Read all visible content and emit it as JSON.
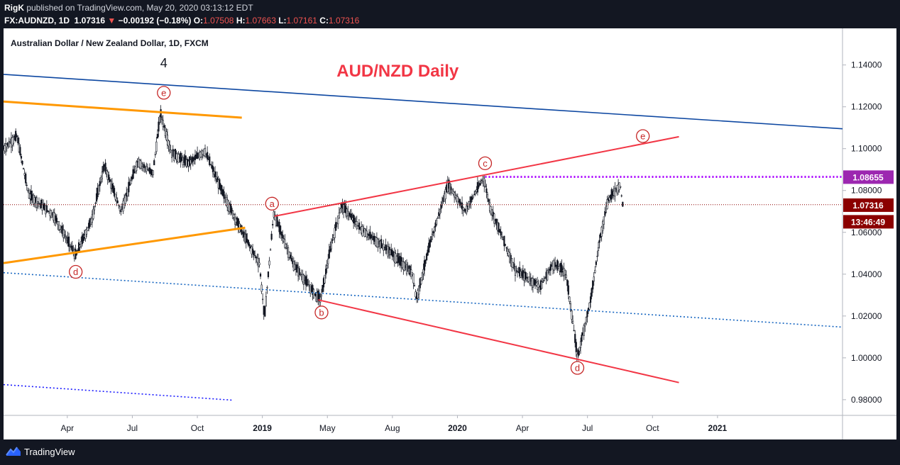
{
  "header": {
    "author": "RigK",
    "published": " published on TradingView.com, May 20, 2020 03:13:12 EDT",
    "symbol": "FX:AUDNZD, 1D",
    "last": "1.07316",
    "change_arrow": "▼",
    "change": "−0.00192 (−0.18%)",
    "o_label": "O:",
    "o": "1.07508",
    "h_label": "H:",
    "h": "1.07663",
    "l_label": "L:",
    "l": "1.07161",
    "c_label": "C:",
    "c": "1.07316"
  },
  "footer": {
    "brand": "TradingView",
    "logo_icon": "tradingview-logo-icon"
  },
  "chart_data": {
    "type": "candlestick",
    "title": "Australian Dollar / New Zealand Dollar, 1D, FXCM",
    "annotation_title": "AUD/NZD Daily",
    "x_ticks": [
      "Apr",
      "Jul",
      "Oct",
      "2019",
      "May",
      "Aug",
      "2020",
      "Apr",
      "Jul",
      "Oct",
      "2021"
    ],
    "y_ticks": [
      "1.14000",
      "1.12000",
      "1.10000",
      "1.08000",
      "1.06000",
      "1.04000",
      "1.02000",
      "1.00000",
      "0.98000"
    ],
    "ylim": [
      0.9725,
      1.1575
    ],
    "price_labels": [
      {
        "text": "1.08655",
        "value": 1.08655,
        "color": "#9c27b0"
      },
      {
        "text": "1.07316",
        "value": 1.07316,
        "color": "#8b0000"
      },
      {
        "text": "13:46:49",
        "value": 1.0652,
        "color": "#8b0000"
      }
    ],
    "wave_labels": [
      {
        "text": "4",
        "style": "plain",
        "t": 0.191,
        "v": 1.1388
      },
      {
        "text": "e",
        "style": "circle",
        "t": 0.191,
        "v": 1.1267
      },
      {
        "text": "d",
        "style": "circle",
        "t": 0.086,
        "v": 1.0411
      },
      {
        "text": "a",
        "style": "circle",
        "t": 0.32,
        "v": 1.0737
      },
      {
        "text": "b",
        "style": "circle",
        "t": 0.379,
        "v": 1.0217
      },
      {
        "text": "c",
        "style": "circle",
        "t": 0.574,
        "v": 1.093
      },
      {
        "text": "e",
        "style": "circle",
        "t": 0.762,
        "v": 1.106
      },
      {
        "text": "d",
        "style": "circle",
        "t": 0.684,
        "v": 0.9952
      }
    ],
    "trendlines": [
      {
        "name": "blue-resistance",
        "color": "#0d47a1",
        "dash": "",
        "width": 1.6,
        "p1": [
          0.0,
          1.1355
        ],
        "p2": [
          1.0,
          1.1095
        ]
      },
      {
        "name": "orange-top",
        "color": "#ff9800",
        "dash": "",
        "width": 3,
        "p1": [
          0.0,
          1.1225
        ],
        "p2": [
          0.284,
          1.1148
        ]
      },
      {
        "name": "orange-bottom",
        "color": "#ff9800",
        "dash": "",
        "width": 3,
        "p1": [
          0.0,
          1.0453
        ],
        "p2": [
          0.288,
          1.0622
        ]
      },
      {
        "name": "red-upper",
        "color": "#f23645",
        "dash": "",
        "width": 2,
        "p1": [
          0.323,
          1.0677
        ],
        "p2": [
          0.805,
          1.1057
        ]
      },
      {
        "name": "red-lower",
        "color": "#f23645",
        "dash": "",
        "width": 2,
        "p1": [
          0.375,
          1.0277
        ],
        "p2": [
          0.805,
          0.9882
        ]
      },
      {
        "name": "blue-dotted-mid",
        "color": "#1565c0",
        "dash": "2,3",
        "width": 1.6,
        "p1": [
          0.0,
          1.0407
        ],
        "p2": [
          1.0,
          1.0147
        ]
      },
      {
        "name": "blue-dotted-low",
        "color": "#1a1aff",
        "dash": "2,3",
        "width": 1.6,
        "p1": [
          0.0,
          0.9872
        ],
        "p2": [
          0.272,
          0.9798
        ]
      },
      {
        "name": "purple-dotted-level",
        "color": "#aa00ff",
        "dash": "2,3",
        "width": 3,
        "p1": [
          0.574,
          1.0865
        ],
        "p2": [
          1.0,
          1.0865
        ]
      },
      {
        "name": "last-price-line",
        "color": "#8b0000",
        "dash": "1,2",
        "width": 1,
        "p1": [
          0.0,
          1.0732
        ],
        "p2": [
          1.0,
          1.0732
        ]
      }
    ],
    "price_path": [
      [
        0.0,
        1.1
      ],
      [
        0.016,
        1.106
      ],
      [
        0.03,
        1.078
      ],
      [
        0.06,
        1.068
      ],
      [
        0.086,
        1.049
      ],
      [
        0.105,
        1.066
      ],
      [
        0.12,
        1.092
      ],
      [
        0.14,
        1.07
      ],
      [
        0.16,
        1.094
      ],
      [
        0.178,
        1.088
      ],
      [
        0.187,
        1.117
      ],
      [
        0.2,
        1.098
      ],
      [
        0.22,
        1.093
      ],
      [
        0.24,
        1.099
      ],
      [
        0.262,
        1.078
      ],
      [
        0.282,
        1.062
      ],
      [
        0.305,
        1.045
      ],
      [
        0.311,
        1.019
      ],
      [
        0.322,
        1.069
      ],
      [
        0.345,
        1.045
      ],
      [
        0.37,
        1.031
      ],
      [
        0.378,
        1.028
      ],
      [
        0.39,
        1.053
      ],
      [
        0.403,
        1.073
      ],
      [
        0.425,
        1.062
      ],
      [
        0.46,
        1.051
      ],
      [
        0.488,
        1.04
      ],
      [
        0.492,
        1.028
      ],
      [
        0.51,
        1.057
      ],
      [
        0.53,
        1.083
      ],
      [
        0.55,
        1.07
      ],
      [
        0.572,
        1.086
      ],
      [
        0.58,
        1.072
      ],
      [
        0.61,
        1.042
      ],
      [
        0.64,
        1.034
      ],
      [
        0.655,
        1.045
      ],
      [
        0.67,
        1.041
      ],
      [
        0.678,
        1.019
      ],
      [
        0.684,
        1.0
      ],
      [
        0.7,
        1.028
      ],
      [
        0.71,
        1.055
      ],
      [
        0.72,
        1.075
      ],
      [
        0.735,
        1.083
      ],
      [
        0.738,
        1.0732
      ]
    ]
  }
}
